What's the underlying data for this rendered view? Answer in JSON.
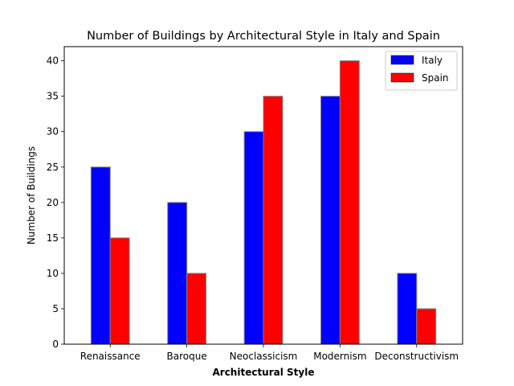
{
  "chart_data": {
    "type": "bar",
    "title": "Number of Buildings by Architectural Style in Italy and Spain",
    "xlabel": "Architectural Style",
    "ylabel": "Number of Buildings",
    "categories": [
      "Renaissance",
      "Baroque",
      "Neoclassicism",
      "Modernism",
      "Deconstructivism"
    ],
    "series": [
      {
        "name": "Italy",
        "color": "#0000ff",
        "values": [
          25,
          20,
          30,
          35,
          10
        ]
      },
      {
        "name": "Spain",
        "color": "#ff0000",
        "values": [
          15,
          10,
          35,
          40,
          5
        ]
      }
    ],
    "ylim": [
      0,
      42
    ],
    "yticks": [
      0,
      5,
      10,
      15,
      20,
      25,
      30,
      35,
      40
    ],
    "grid": false,
    "legend": "top-right",
    "bar_edge_color": "#808080"
  }
}
